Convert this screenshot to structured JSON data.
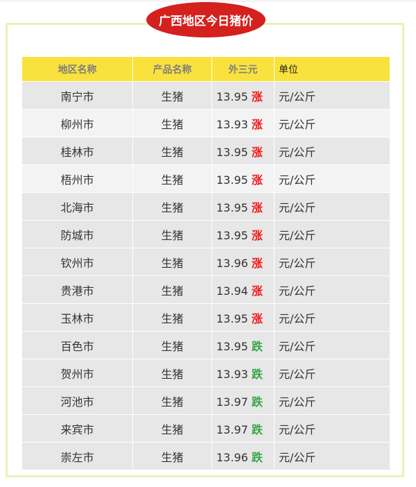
{
  "title": "广西地区今日猪价",
  "headers": [
    "地区名称",
    "产品名称",
    "外三元",
    "单位"
  ],
  "colors": {
    "up": "#f21a1a",
    "down": "#3aa64a",
    "header_bg": "#f9e23e",
    "title_bg": "#d4211d"
  },
  "rows": [
    {
      "region": "南宁市",
      "product": "生猪",
      "price": "13.95",
      "trend": "涨",
      "unit": "元/公斤"
    },
    {
      "region": "柳州市",
      "product": "生猪",
      "price": "13.93",
      "trend": "涨",
      "unit": "元/公斤"
    },
    {
      "region": "桂林市",
      "product": "生猪",
      "price": "13.95",
      "trend": "涨",
      "unit": "元/公斤"
    },
    {
      "region": "梧州市",
      "product": "生猪",
      "price": "13.95",
      "trend": "涨",
      "unit": "元/公斤"
    },
    {
      "region": "北海市",
      "product": "生猪",
      "price": "13.95",
      "trend": "涨",
      "unit": "元/公斤"
    },
    {
      "region": "防城市",
      "product": "生猪",
      "price": "13.95",
      "trend": "涨",
      "unit": "元/公斤"
    },
    {
      "region": "钦州市",
      "product": "生猪",
      "price": "13.96",
      "trend": "涨",
      "unit": "元/公斤"
    },
    {
      "region": "贵港市",
      "product": "生猪",
      "price": "13.94",
      "trend": "涨",
      "unit": "元/公斤"
    },
    {
      "region": "玉林市",
      "product": "生猪",
      "price": "13.95",
      "trend": "涨",
      "unit": "元/公斤"
    },
    {
      "region": "百色市",
      "product": "生猪",
      "price": "13.95",
      "trend": "跌",
      "unit": "元/公斤"
    },
    {
      "region": "贺州市",
      "product": "生猪",
      "price": "13.93",
      "trend": "跌",
      "unit": "元/公斤"
    },
    {
      "region": "河池市",
      "product": "生猪",
      "price": "13.97",
      "trend": "跌",
      "unit": "元/公斤"
    },
    {
      "region": "来宾市",
      "product": "生猪",
      "price": "13.97",
      "trend": "跌",
      "unit": "元/公斤"
    },
    {
      "region": "崇左市",
      "product": "生猪",
      "price": "13.96",
      "trend": "跌",
      "unit": "元/公斤"
    }
  ]
}
